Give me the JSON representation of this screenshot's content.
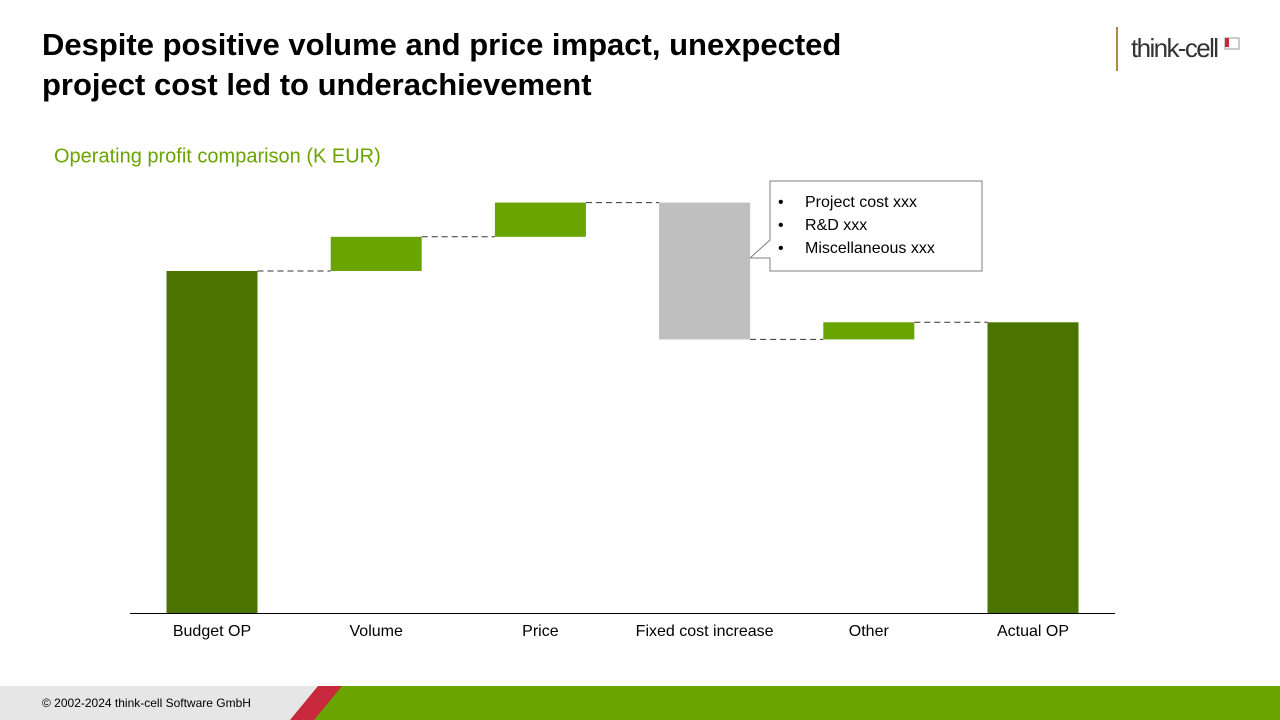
{
  "chart_data": {
    "type": "waterfall",
    "title": [
      "Despite positive volume and price impact, unexpected",
      "project cost led to underachievement"
    ],
    "subtitle": "Operating profit comparison (K EUR)",
    "categories": [
      "Budget OP",
      "Volume",
      "Price",
      "Fixed cost increase",
      "Other",
      "Actual OP"
    ],
    "values": [
      100,
      10,
      10,
      -40,
      5,
      85
    ],
    "total_color": "#4a7300",
    "increase_color": "#6aa400",
    "decrease_color": "#bfbfbf",
    "ylim": [
      0,
      120
    ],
    "annotations": [
      "Project cost xxx",
      "R&D xxx",
      "Miscellaneous xxx"
    ]
  },
  "logo": "think-cell",
  "footer": "© 2002-2024  think-cell Software GmbH"
}
